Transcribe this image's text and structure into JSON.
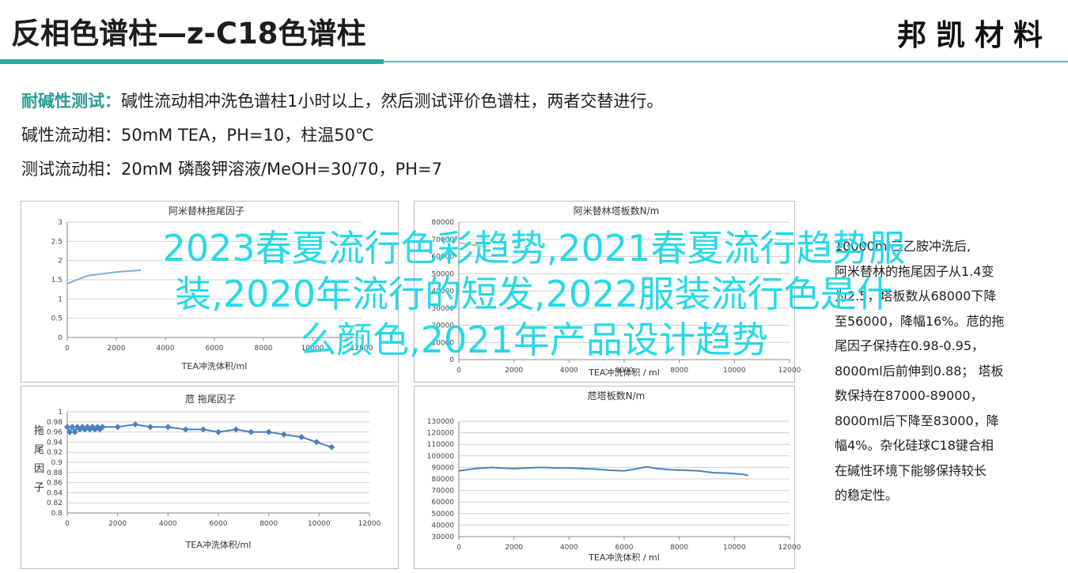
{
  "header": {
    "title": "反相色谱柱—z-C18色谱柱",
    "logo": "邦凯材料",
    "accent_color": "#2ba6a0"
  },
  "intro": {
    "line1_label": "耐碱性测试：",
    "line1_text": "碱性流动相冲洗色谱柱1小时以上，然后测试评价色谱柱，两者交替进行。",
    "line2_label": "碱性流动相：",
    "line2_text": "50mM TEA，PH=10，柱温50℃",
    "line3_label": "测试流动相：",
    "line3_text": "20mM 磷酸钾溶液/MeOH=30/70，PH=7"
  },
  "overlay": {
    "line1": "2023春夏流行色彩趋势,2021春夏流行趋势服",
    "line2": "装,2020年流行的短发,2022服装流行色是什",
    "line3": "么颜色,2021年产品设计趋势"
  },
  "side_text": [
    "10000ml三乙胺冲洗后,",
    "阿米替林的拖尾因子从1.4变",
    "为2.5，塔板数从68000下降",
    "至56000，降幅16%。苊的拖",
    "尾因子保持在0.98-0.95，",
    "8000ml后前伸到0.88；  塔板",
    "数保持在87000-89000，",
    "8000ml后下降至83000，降",
    "幅4%。杂化硅球C18键合相",
    "在碱性环境下能够保持较长",
    "的稳定性。"
  ],
  "chart_data": [
    {
      "type": "line",
      "title": "阿米替林拖尾因子",
      "xlabel": "TEA冲洗体积/ml",
      "ylabel": "",
      "xlim": [
        0,
        12000
      ],
      "ylim": [
        0,
        3
      ],
      "xticks": [
        "0",
        "2000",
        "4000",
        "6000",
        "8000",
        "10000",
        "12000"
      ],
      "yticks": [
        "0",
        "0.5",
        "1",
        "1.5",
        "2",
        "2.5",
        "3"
      ],
      "color": "#7fb0d6",
      "series": [
        {
          "x": [
            0,
            200,
            400,
            600,
            800,
            1000,
            1200,
            1500,
            2000,
            3000
          ],
          "y": [
            1.4,
            1.45,
            1.5,
            1.55,
            1.6,
            1.62,
            1.64,
            1.66,
            1.7,
            1.75
          ]
        }
      ]
    },
    {
      "type": "line",
      "title": "阿米替林塔板数N/m",
      "xlabel": "TEA冲洗体积 / ml",
      "ylabel": "",
      "xlim": [
        0,
        12000
      ],
      "ylim": [
        0,
        80000
      ],
      "xticks": [
        "0",
        "2000",
        "4000",
        "6000",
        "8000",
        "10000",
        "12000"
      ],
      "yticks": [
        "0",
        "10000",
        "20000",
        "30000",
        "40000",
        "50000",
        "60000",
        "70000",
        "80000"
      ],
      "color": "#b0c9a0",
      "series": [
        {
          "x": [
            0,
            200,
            400,
            600,
            800,
            1000
          ],
          "y": [
            68000,
            67500,
            67000,
            66500,
            66000,
            65500
          ]
        }
      ]
    },
    {
      "type": "line",
      "title": "苊 拖尾因子",
      "xlabel": "TEA冲洗体积/ml",
      "ylabel": "拖尾因子",
      "xlim": [
        0,
        12000
      ],
      "ylim": [
        0.8,
        1
      ],
      "xticks": [
        "0",
        "2000",
        "4000",
        "6000",
        "8000",
        "10000",
        "12000"
      ],
      "yticks": [
        "0.8",
        "0.82",
        "0.84",
        "0.86",
        "0.88",
        "0.9",
        "0.92",
        "0.94",
        "0.96",
        "0.98",
        "1"
      ],
      "color": "#4a81bd",
      "series": [
        {
          "x": [
            0,
            100,
            200,
            300,
            400,
            500,
            600,
            700,
            800,
            900,
            1000,
            1100,
            1200,
            1300,
            1400,
            2000,
            2700,
            3300,
            4000,
            4700,
            5400,
            6000,
            6700,
            7300,
            8000,
            8600,
            9300,
            9900,
            10500
          ],
          "y": [
            0.97,
            0.96,
            0.97,
            0.96,
            0.97,
            0.965,
            0.97,
            0.965,
            0.97,
            0.965,
            0.97,
            0.965,
            0.97,
            0.965,
            0.97,
            0.97,
            0.975,
            0.97,
            0.97,
            0.965,
            0.965,
            0.96,
            0.965,
            0.96,
            0.96,
            0.955,
            0.95,
            0.94,
            0.93
          ]
        }
      ]
    },
    {
      "type": "line",
      "title": "苊塔板数N/m",
      "xlabel": "TEA冲洗体积 / ml",
      "ylabel": "",
      "xlim": [
        0,
        12000
      ],
      "ylim": [
        30000,
        130000
      ],
      "xticks": [
        "0",
        "2000",
        "4000",
        "6000",
        "8000",
        "10000",
        "12000"
      ],
      "yticks": [
        "30000",
        "40000",
        "50000",
        "60000",
        "70000",
        "80000",
        "90000",
        "100000",
        "110000",
        "120000",
        "130000"
      ],
      "color": "#4a81bd",
      "series": [
        {
          "x": [
            0,
            300,
            600,
            900,
            1200,
            1500,
            2000,
            2500,
            3000,
            3500,
            4000,
            4500,
            5000,
            5500,
            6000,
            6500,
            6800,
            7200,
            7700,
            8200,
            8700,
            9200,
            9800,
            10300,
            10500
          ],
          "y": [
            87000,
            88000,
            89000,
            89500,
            90000,
            89500,
            89000,
            89500,
            90000,
            89500,
            89500,
            89000,
            88500,
            87500,
            87000,
            89000,
            90500,
            89000,
            88000,
            87500,
            87000,
            85500,
            85000,
            84000,
            83000
          ]
        }
      ]
    }
  ]
}
